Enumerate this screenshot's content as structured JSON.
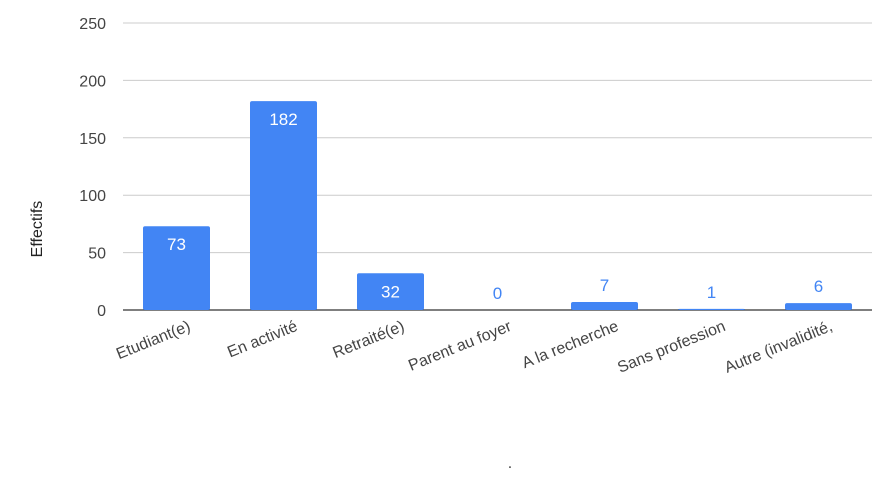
{
  "chart_data": {
    "type": "bar",
    "categories": [
      "Etudiant(e)",
      "En activité",
      "Retraité(e)",
      "Parent au foyer",
      "A la recherche",
      "Sans profession",
      "Autre (invalidité,"
    ],
    "values": [
      73,
      182,
      32,
      0,
      7,
      1,
      6
    ],
    "xlabel": ".",
    "ylabel": "Effectifs",
    "ylim": [
      0,
      250
    ],
    "yticks": [
      0,
      50,
      100,
      150,
      200,
      250
    ],
    "grid": true,
    "legend": "none",
    "colors": {
      "bar": "#4285f4",
      "label_inside": "#ffffff",
      "label_outside": "#4285f4"
    }
  }
}
